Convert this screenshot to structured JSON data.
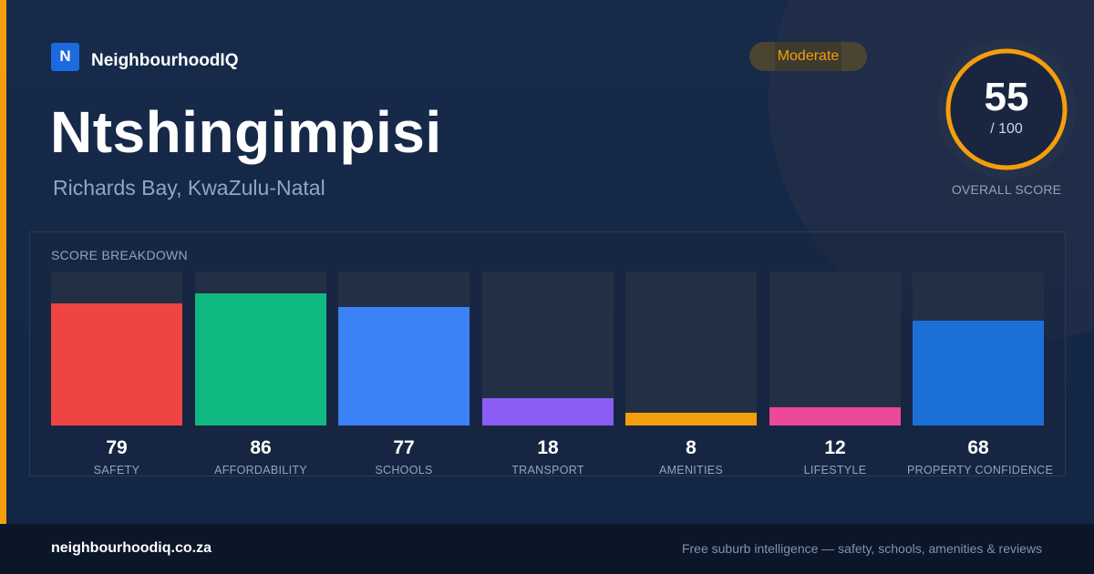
{
  "brand": {
    "logo_letter": "N",
    "name": "NeighbourhoodIQ"
  },
  "suburb": {
    "name": "Ntshingimpisi",
    "location": "Richards Bay, KwaZulu-Natal"
  },
  "rating": {
    "badge": "Moderate",
    "score": "55",
    "max": "/ 100",
    "caption": "OVERALL SCORE",
    "score_value": 55,
    "score_max": 100
  },
  "colors": {
    "accent": "#f59e0b",
    "brand": "#1d6ae0"
  },
  "breakdown": {
    "title": "SCORE BREAKDOWN",
    "items": [
      {
        "label": "SAFETY",
        "value": 79,
        "display": "79",
        "color": "#ef4444"
      },
      {
        "label": "AFFORDABILITY",
        "value": 86,
        "display": "86",
        "color": "#10b981"
      },
      {
        "label": "SCHOOLS",
        "value": 77,
        "display": "77",
        "color": "#3b82f6"
      },
      {
        "label": "TRANSPORT",
        "value": 18,
        "display": "18",
        "color": "#8b5cf6"
      },
      {
        "label": "AMENITIES",
        "value": 8,
        "display": "8",
        "color": "#f59e0b"
      },
      {
        "label": "LIFESTYLE",
        "value": 12,
        "display": "12",
        "color": "#ec4899"
      },
      {
        "label": "PROPERTY CONFIDENCE",
        "value": 68,
        "display": "68",
        "color": "#1d6fd8"
      }
    ]
  },
  "footer": {
    "site": "neighbourhoodiq.co.za",
    "tagline": "Free suburb intelligence — safety, schools, amenities & reviews"
  }
}
